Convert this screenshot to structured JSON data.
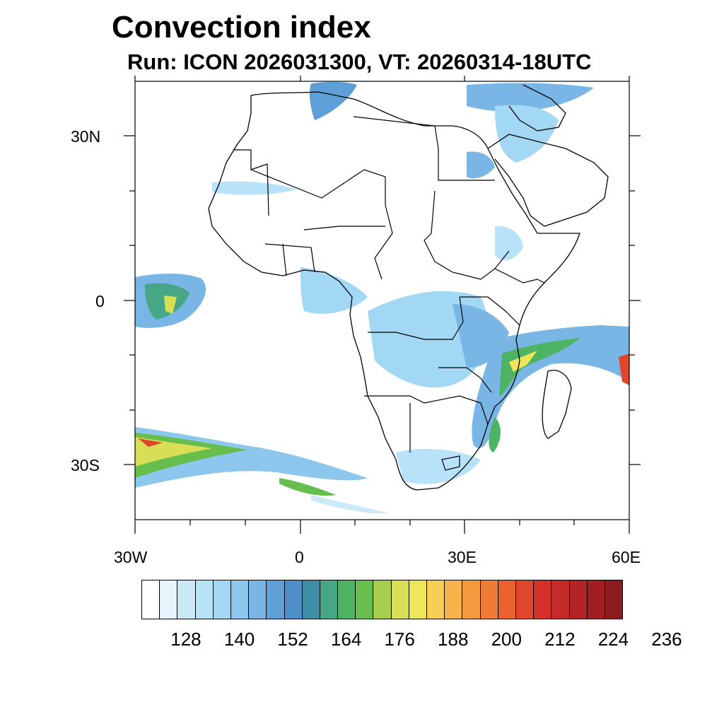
{
  "title": "Convection index",
  "subtitle": "Run: ICON 2026031300,  VT: 20260314-18UTC",
  "map": {
    "lat_labels": [
      "30N",
      "0",
      "30S"
    ],
    "lon_labels": [
      "30W",
      "0",
      "30E",
      "60E"
    ],
    "lat_range": [
      -40,
      40
    ],
    "lon_range": [
      -30,
      60
    ]
  },
  "colorbar": {
    "colors": [
      "#ffffff",
      "#e6f4fc",
      "#cce9f8",
      "#b8e2f8",
      "#a3d8f5",
      "#8ec7ee",
      "#79b6e5",
      "#5e9fd7",
      "#4e8ec9",
      "#3f8ea5",
      "#46a686",
      "#4db463",
      "#66bf4d",
      "#a8cc4c",
      "#d8df57",
      "#f0e65a",
      "#f8cf54",
      "#f6b44a",
      "#f49a3e",
      "#ef7c35",
      "#e8612e",
      "#e0462b",
      "#d6302b",
      "#c52a2a",
      "#b32226",
      "#a21d22",
      "#8c1b1e"
    ],
    "labels": [
      "128",
      "140",
      "152",
      "164",
      "176",
      "188",
      "200",
      "212",
      "224",
      "236"
    ]
  }
}
